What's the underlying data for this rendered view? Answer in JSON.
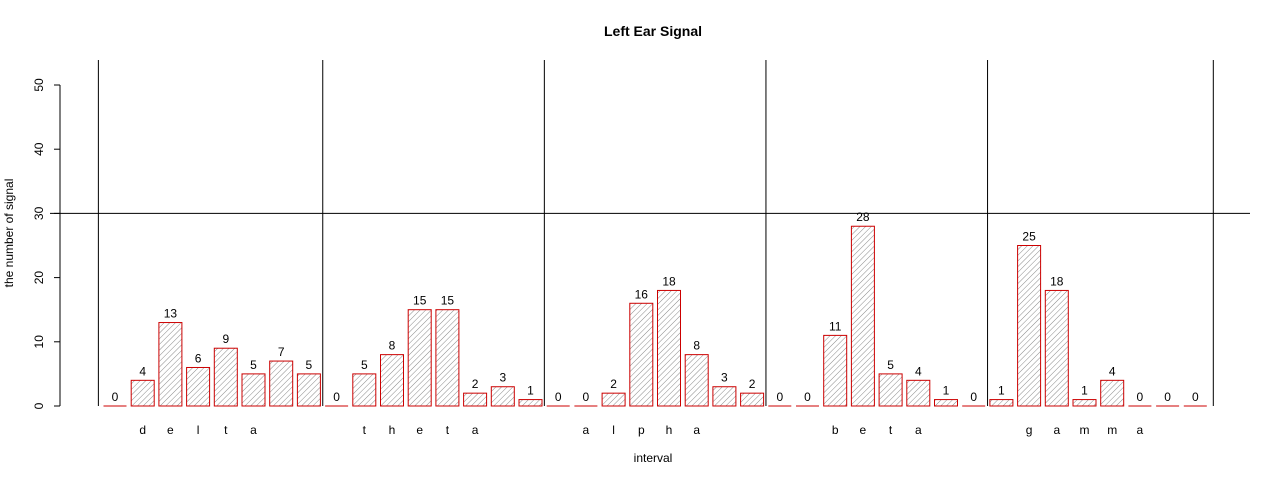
{
  "chart_data": {
    "type": "bar",
    "title": "Left Ear Signal",
    "xlabel": "interval",
    "ylabel": "the number of signal",
    "ylim": [
      0,
      50
    ],
    "yticks": [
      0,
      10,
      20,
      30,
      40,
      50
    ],
    "reference_line": 30,
    "values": [
      0,
      4,
      13,
      6,
      9,
      5,
      7,
      5,
      0,
      5,
      8,
      15,
      15,
      2,
      3,
      1,
      0,
      0,
      2,
      16,
      18,
      8,
      3,
      2,
      0,
      0,
      11,
      28,
      5,
      4,
      1,
      0,
      1,
      25,
      18,
      1,
      4,
      0,
      0,
      0
    ],
    "group_letters": [
      {
        "letters": [
          "d",
          "e",
          "l",
          "t",
          "a"
        ],
        "start_bar": 1
      },
      {
        "letters": [
          "t",
          "h",
          "e",
          "t",
          "a"
        ],
        "start_bar": 9
      },
      {
        "letters": [
          "a",
          "l",
          "p",
          "h",
          "a"
        ],
        "start_bar": 17
      },
      {
        "letters": [
          "b",
          "e",
          "t",
          "a"
        ],
        "start_bar": 26
      },
      {
        "letters": [
          "g",
          "a",
          "m",
          "m",
          "a"
        ],
        "start_bar": 33
      }
    ],
    "bar_color": "#cc0000",
    "hatch_color": "#888888",
    "grid": false
  }
}
